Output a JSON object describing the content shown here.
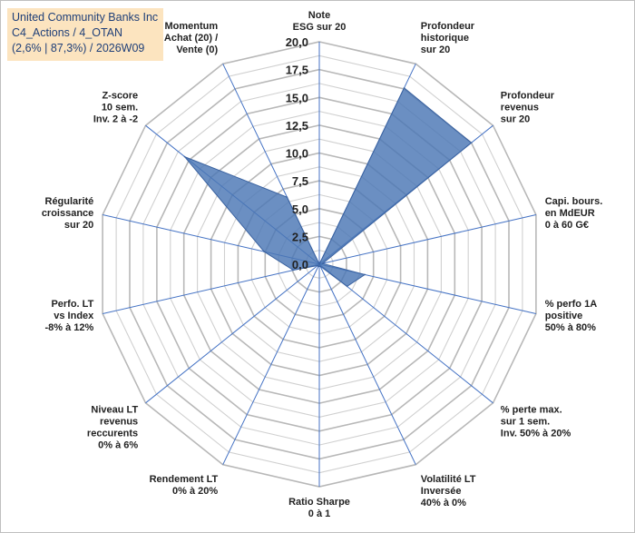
{
  "info": {
    "company": "United Community Banks Inc",
    "category": "C4_Actions / 4_OTAN",
    "stats": "(2,6% | 87,3%) / 2026W09"
  },
  "chart_data": {
    "type": "radar",
    "title": "",
    "rlim": [
      0,
      20
    ],
    "ticks": [
      "0,0",
      "2,5",
      "5,0",
      "7,5",
      "10,0",
      "12,5",
      "15,0",
      "17,5",
      "20,0"
    ],
    "tick_values": [
      0,
      2.5,
      5,
      7.5,
      10,
      12.5,
      15,
      17.5,
      20
    ],
    "grid_levels": [
      0,
      1.25,
      2.5,
      3.75,
      5,
      6.25,
      7.5,
      8.75,
      10,
      11.25,
      12.5,
      13.75,
      15,
      16.25,
      17.5,
      18.75,
      20
    ],
    "axes": [
      {
        "label": [
          "Note",
          "ESG sur 20"
        ],
        "value": 0
      },
      {
        "label": [
          "Profondeur",
          "historique",
          "sur 20"
        ],
        "value": 17.6
      },
      {
        "label": [
          "Profondeur",
          "revenus",
          "sur 20"
        ],
        "value": 17.5
      },
      {
        "label": [
          "Capi. bours.",
          "en MdEUR",
          "0 à 60 G€"
        ],
        "value": 0.3
      },
      {
        "label": [
          "% perfo 1A",
          "positive",
          "50% à 80%"
        ],
        "value": 4.2
      },
      {
        "label": [
          "% perte max.",
          "sur 1 sem.",
          "Inv. 50% à 20%"
        ],
        "value": 3.2
      },
      {
        "label": [
          "Volatilité LT",
          "Inversée",
          "40% à 0%"
        ],
        "value": 0.2
      },
      {
        "label": [
          "Ratio Sharpe",
          "0 à 1"
        ],
        "value": 0.2
      },
      {
        "label": [
          "Rendement LT",
          "0% à 20%"
        ],
        "value": 0.2
      },
      {
        "label": [
          "Niveau LT",
          "revenus",
          "reccurents",
          "0% à 6%"
        ],
        "value": 0.2
      },
      {
        "label": [
          "Perfo. LT",
          "vs Index",
          "-8% à 12%"
        ],
        "value": 2.4
      },
      {
        "label": [
          "Régularité",
          "croissance",
          "sur 20"
        ],
        "value": 5.1
      },
      {
        "label": [
          "Z-score",
          "10 sem.",
          "Inv. 2 à -2"
        ],
        "value": 15.5
      },
      {
        "label": [
          "Momentum",
          "Achat (20) /",
          "Vente (0)"
        ],
        "value": 6.7
      }
    ],
    "colors": {
      "fill": "#4a76b4",
      "stroke": "#3a62a0",
      "axis": "#4472c4",
      "grid": "#c0c0c0"
    }
  }
}
